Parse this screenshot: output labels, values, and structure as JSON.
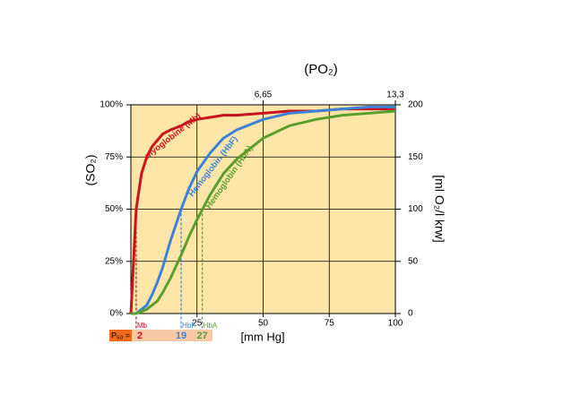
{
  "chart_data": {
    "type": "line",
    "x_label": "[mm Hg]",
    "x2_label": "(PO₂)",
    "y_label": "(SO₂)",
    "y2_label": "[ml O₂/l krw]",
    "x": [
      0,
      2,
      4,
      6,
      8,
      10,
      12,
      15,
      19,
      22,
      25,
      30,
      35,
      40,
      50,
      60,
      70,
      80,
      90,
      100
    ],
    "series": [
      {
        "name": "myoglobine (Mb)",
        "color": "#c8141e",
        "values": [
          0,
          50,
          67,
          75,
          80,
          83,
          86,
          88,
          90,
          92,
          93,
          94,
          95,
          95,
          96,
          97,
          97,
          98,
          98,
          98
        ]
      },
      {
        "name": "Hemoglobin (HbF)",
        "color": "#3b82d8",
        "values": [
          0,
          0,
          2,
          4,
          9,
          15,
          22,
          35,
          50,
          60,
          68,
          77,
          84,
          88,
          93,
          96,
          97,
          98,
          99,
          99
        ]
      },
      {
        "name": "Hemoglobin (HbA)",
        "color": "#5a9e2e",
        "values": [
          0,
          0,
          1,
          2,
          4,
          6,
          10,
          17,
          28,
          37,
          45,
          57,
          67,
          74,
          84,
          90,
          93,
          95,
          96,
          97
        ]
      }
    ],
    "xlim": [
      0,
      100
    ],
    "xticks": [
      25,
      50,
      75,
      100
    ],
    "x2lim": [
      0,
      13.3
    ],
    "x2ticks": [
      {
        "value": 6.65,
        "label": "6,65"
      },
      {
        "value": 13.3,
        "label": "13,3"
      }
    ],
    "ylim": [
      0,
      100
    ],
    "yticks": [
      {
        "value": 0,
        "label": "0%"
      },
      {
        "value": 25,
        "label": "25%"
      },
      {
        "value": 50,
        "label": "50%"
      },
      {
        "value": 75,
        "label": "75%"
      },
      {
        "value": 100,
        "label": "100%"
      }
    ],
    "y2lim": [
      0,
      200
    ],
    "y2ticks": [
      0,
      50,
      100,
      150,
      200
    ],
    "grid": true,
    "background": "#fde6a8",
    "p50": {
      "label": "P₅₀ =",
      "values": [
        2,
        19,
        27
      ],
      "names": [
        "Mb",
        "HbF",
        "HbA"
      ]
    }
  }
}
